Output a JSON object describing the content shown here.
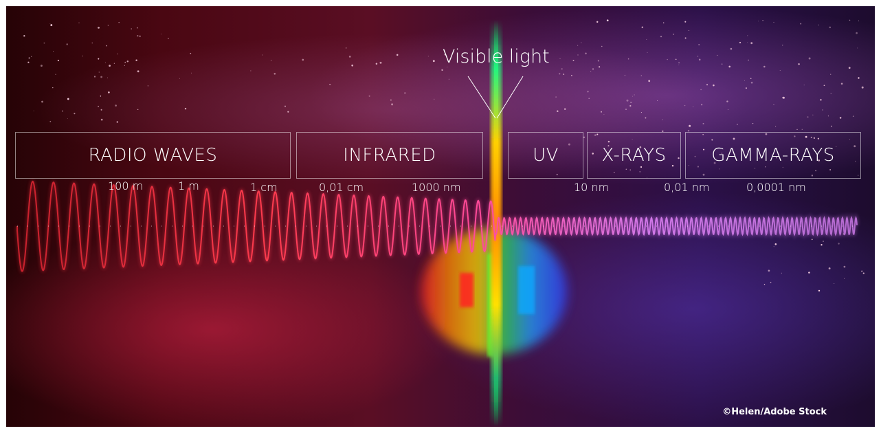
{
  "bands": [
    {
      "name": "RADIO WAVES"
    },
    {
      "name": "INFRARED"
    },
    {
      "name": "UV"
    },
    {
      "name": "X-RAYS"
    },
    {
      "name": "GAMMA-RAYS"
    }
  ],
  "wavelength_labels": [
    "100 m",
    "1 m",
    "1 cm",
    "0,01 cm",
    "1000 nm",
    "10 nm",
    "0,01 nm",
    "0,0001 nm"
  ],
  "visible_light_label": "Visible light",
  "credit": "©Helen/Adobe Stock",
  "colors": {
    "radio": "#e8304a",
    "infrared": "#e0408a",
    "uv": "#b070d8",
    "background_left": "#4a0712",
    "background_right": "#2b1048"
  }
}
